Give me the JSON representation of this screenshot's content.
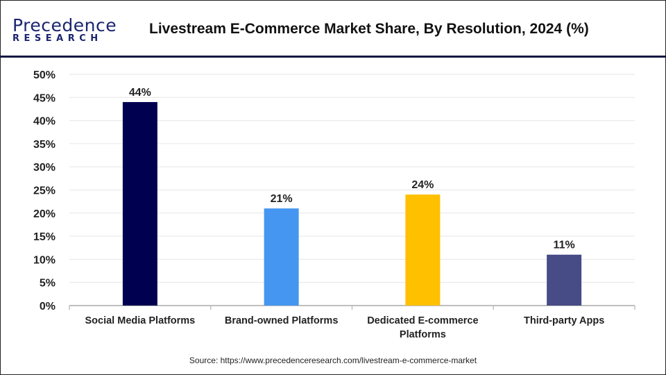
{
  "logo": {
    "text_main": "Precedence",
    "text_sub": "RESEARCH"
  },
  "header": {
    "title": "Livestream E-Commerce Market Share, By Resolution, 2024 (%)"
  },
  "source": "Source: https://www.precedenceresearch.com/livestream-e-commerce-market",
  "chart_data": {
    "type": "bar",
    "title": "Livestream E-Commerce Market Share, By Resolution, 2024 (%)",
    "categories": [
      [
        "Social Media Platforms"
      ],
      [
        "Brand-owned Platforms"
      ],
      [
        "Dedicated E-commerce",
        "Platforms"
      ],
      [
        "Third-party Apps"
      ]
    ],
    "values": [
      44,
      21,
      24,
      11
    ],
    "data_labels": [
      "44%",
      "21%",
      "24%",
      "11%"
    ],
    "colors": [
      "#000050",
      "#4596F0",
      "#FFC000",
      "#474C86"
    ],
    "ylim": [
      0,
      50
    ],
    "yticks": [
      0,
      5,
      10,
      15,
      20,
      25,
      30,
      35,
      40,
      45,
      50
    ],
    "ytick_labels": [
      "0%",
      "5%",
      "10%",
      "15%",
      "20%",
      "25%",
      "30%",
      "35%",
      "40%",
      "45%",
      "50%"
    ],
    "grid": true,
    "legend": "none"
  }
}
